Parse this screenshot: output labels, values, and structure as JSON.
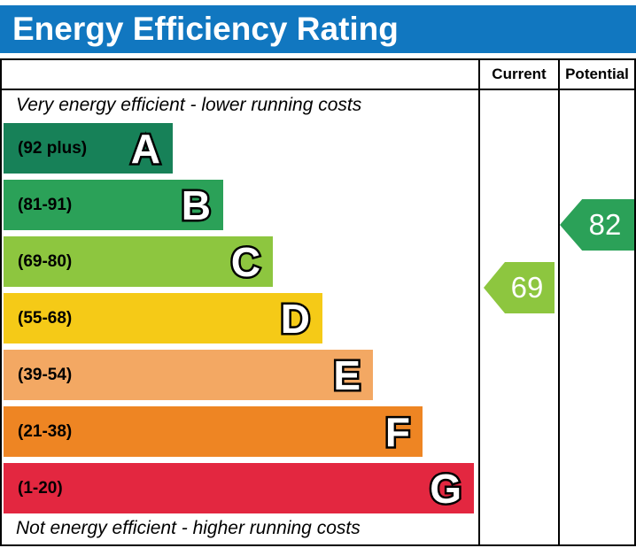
{
  "title": "Energy Efficiency Rating",
  "colors": {
    "title_bar": "#1177c0",
    "border": "#000000",
    "background": "#ffffff"
  },
  "header": {
    "current": "Current",
    "potential": "Potential"
  },
  "captions": {
    "top": "Very energy efficient - lower running costs",
    "bottom": "Not energy efficient - higher running costs"
  },
  "chart_data": {
    "type": "bar",
    "title": "Energy Efficiency Rating",
    "orientation": "horizontal",
    "legend_position": "none",
    "grid": false,
    "bands": [
      {
        "letter": "A",
        "range": "(92 plus)",
        "min": 92,
        "max": 100,
        "color": "#178158"
      },
      {
        "letter": "B",
        "range": "(81-91)",
        "min": 81,
        "max": 91,
        "color": "#2ba158"
      },
      {
        "letter": "C",
        "range": "(69-80)",
        "min": 69,
        "max": 80,
        "color": "#8dc63f"
      },
      {
        "letter": "D",
        "range": "(55-68)",
        "min": 55,
        "max": 68,
        "color": "#f5ca17"
      },
      {
        "letter": "E",
        "range": "(39-54)",
        "min": 39,
        "max": 54,
        "color": "#f3a863"
      },
      {
        "letter": "F",
        "range": "(21-38)",
        "min": 21,
        "max": 38,
        "color": "#ee8523"
      },
      {
        "letter": "G",
        "range": "(1-20)",
        "min": 1,
        "max": 20,
        "color": "#e32740"
      }
    ],
    "current": {
      "value": 69,
      "band": "C",
      "color": "#8dc63f"
    },
    "potential": {
      "value": 82,
      "band": "B",
      "color": "#2ba158"
    }
  }
}
